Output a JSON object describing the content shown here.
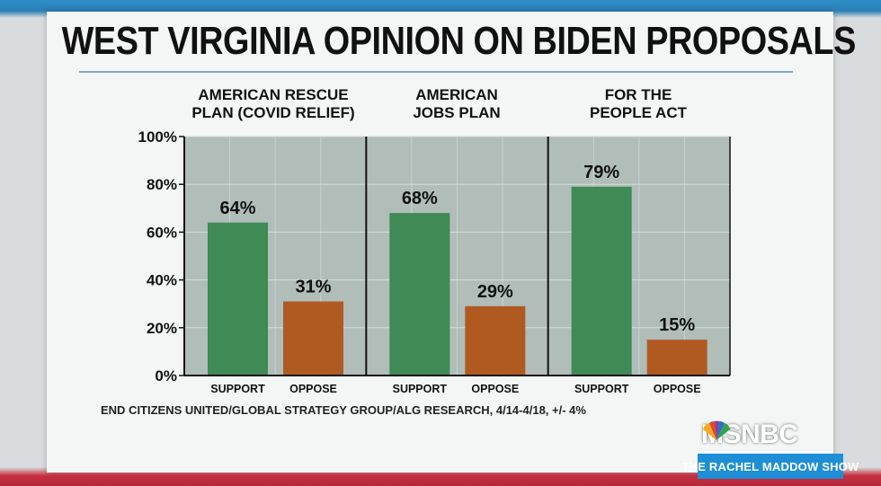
{
  "title": "WEST VIRGINIA OPINION ON BIDEN PROPOSALS",
  "source": "END CITIZENS UNITED/GLOBAL STRATEGY GROUP/ALG RESEARCH, 4/14-4/18, +/- 4%",
  "network": "MSNBC",
  "show": "THE RACHEL MADDOW SHOW",
  "colors": {
    "support": "#3f8a55",
    "oppose": "#b05a22",
    "plot_bg": "#b0bdb9",
    "accent": "#1e8ed6"
  },
  "chart_data": {
    "type": "bar",
    "title": "WEST VIRGINIA OPINION ON BIDEN PROPOSALS",
    "ylim": [
      0,
      100
    ],
    "yticks": [
      "0%",
      "20%",
      "40%",
      "60%",
      "80%",
      "100%"
    ],
    "xlabel": "",
    "ylabel": "",
    "groups": [
      {
        "label": "AMERICAN RESCUE\nPLAN (COVID RELIEF)",
        "bars": [
          {
            "name": "SUPPORT",
            "value": 64,
            "label": "64%"
          },
          {
            "name": "OPPOSE",
            "value": 31,
            "label": "31%"
          }
        ]
      },
      {
        "label": "AMERICAN\nJOBS PLAN",
        "bars": [
          {
            "name": "SUPPORT",
            "value": 68,
            "label": "68%"
          },
          {
            "name": "OPPOSE",
            "value": 29,
            "label": "29%"
          }
        ]
      },
      {
        "label": "FOR THE\nPEOPLE ACT",
        "bars": [
          {
            "name": "SUPPORT",
            "value": 79,
            "label": "79%"
          },
          {
            "name": "OPPOSE",
            "value": 15,
            "label": "15%"
          }
        ]
      }
    ]
  }
}
